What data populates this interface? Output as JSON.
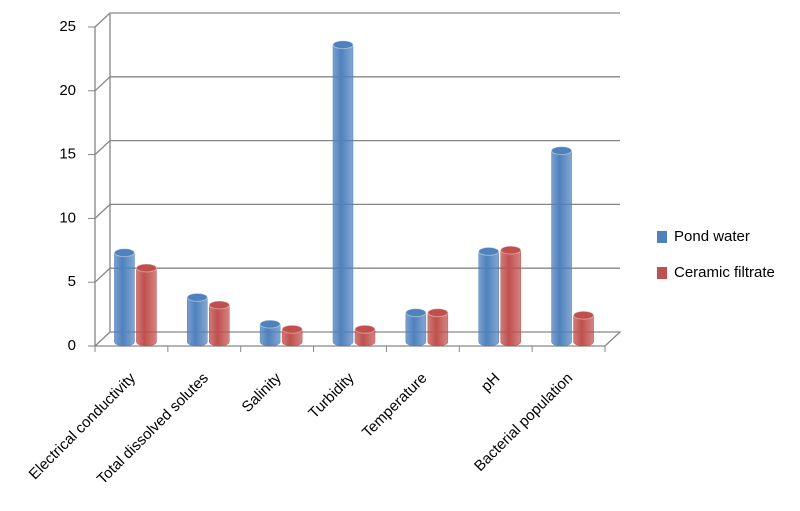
{
  "chart_data": {
    "type": "bar3d",
    "categories": [
      "Electrical conductivity",
      "Total dissolved solutes",
      "Salinity",
      "Turbidity",
      "Temperature",
      "pH",
      "Bacterial population"
    ],
    "series": [
      {
        "name": "Pond water",
        "color": "#4f81bd",
        "values": [
          7.0,
          3.5,
          1.4,
          23.3,
          2.3,
          7.1,
          15.0
        ]
      },
      {
        "name": "Ceramic filtrate",
        "color": "#c0504d",
        "values": [
          5.8,
          2.9,
          1.0,
          1.0,
          2.3,
          7.2,
          2.1
        ]
      }
    ],
    "ylim": [
      0,
      25
    ],
    "yticks": [
      0,
      5,
      10,
      15,
      20,
      25
    ],
    "grid": true,
    "legend": "right"
  }
}
